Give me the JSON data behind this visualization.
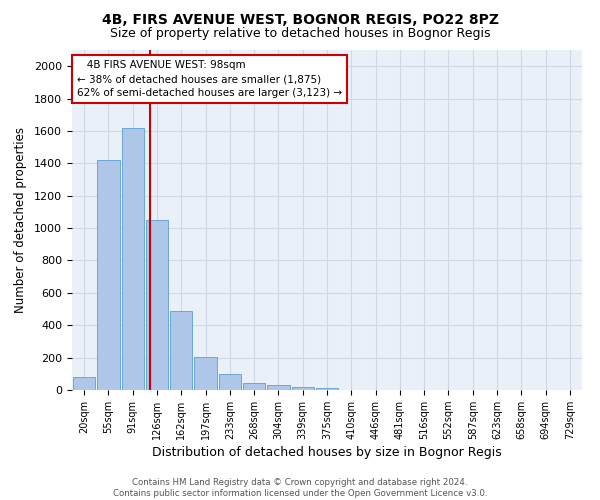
{
  "title": "4B, FIRS AVENUE WEST, BOGNOR REGIS, PO22 8PZ",
  "subtitle": "Size of property relative to detached houses in Bognor Regis",
  "xlabel": "Distribution of detached houses by size in Bognor Regis",
  "ylabel": "Number of detached properties",
  "bar_labels": [
    "20sqm",
    "55sqm",
    "91sqm",
    "126sqm",
    "162sqm",
    "197sqm",
    "233sqm",
    "268sqm",
    "304sqm",
    "339sqm",
    "375sqm",
    "410sqm",
    "446sqm",
    "481sqm",
    "516sqm",
    "552sqm",
    "587sqm",
    "623sqm",
    "658sqm",
    "694sqm",
    "729sqm"
  ],
  "bar_values": [
    80,
    1420,
    1620,
    1050,
    490,
    205,
    100,
    45,
    30,
    20,
    15,
    0,
    0,
    0,
    0,
    0,
    0,
    0,
    0,
    0,
    0
  ],
  "bar_color": "#aec6e8",
  "bar_edgecolor": "#5a9fd4",
  "vline_x": 2.72,
  "vline_color": "#cc0000",
  "annotation_text": "   4B FIRS AVENUE WEST: 98sqm\n← 38% of detached houses are smaller (1,875)\n62% of semi-detached houses are larger (3,123) →",
  "annotation_box_color": "#cc0000",
  "annotation_fontsize": 7.5,
  "ylim": [
    0,
    2100
  ],
  "yticks": [
    0,
    200,
    400,
    600,
    800,
    1000,
    1200,
    1400,
    1600,
    1800,
    2000
  ],
  "grid_color": "#d0d8e8",
  "background_color": "#eaf0f8",
  "footer_text": "Contains HM Land Registry data © Crown copyright and database right 2024.\nContains public sector information licensed under the Open Government Licence v3.0.",
  "title_fontsize": 10,
  "subtitle_fontsize": 9,
  "xlabel_fontsize": 9,
  "ylabel_fontsize": 8.5,
  "tick_fontsize": 8,
  "xtick_fontsize": 7
}
